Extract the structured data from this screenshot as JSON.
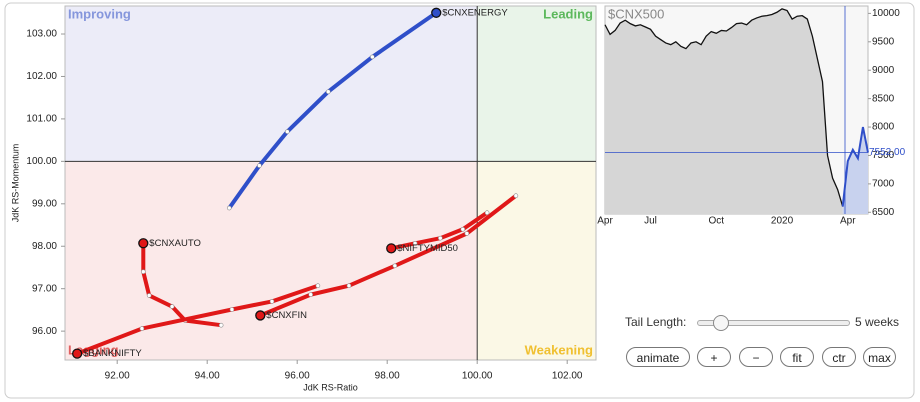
{
  "chart_data": [
    {
      "type": "rrg",
      "x_label": "JdK RS-Ratio",
      "y_label": "JdK RS-Momentum",
      "xlim": [
        90.84,
        102.64
      ],
      "ylim": [
        95.32,
        103.66
      ],
      "xticks": [
        {
          "value": 92,
          "label": "92.00"
        },
        {
          "value": 94,
          "label": "94.00"
        },
        {
          "value": 96,
          "label": "96.00"
        },
        {
          "value": 98,
          "label": "98.00"
        },
        {
          "value": 100,
          "label": "100.00"
        },
        {
          "value": 102,
          "label": "102.00"
        }
      ],
      "yticks": [
        {
          "value": 96,
          "label": "96.00"
        },
        {
          "value": 97,
          "label": "97.00"
        },
        {
          "value": 98,
          "label": "98.00"
        },
        {
          "value": 99,
          "label": "99.00"
        },
        {
          "value": 100,
          "label": "100.00"
        },
        {
          "value": 101,
          "label": "101.00"
        },
        {
          "value": 102,
          "label": "102.00"
        },
        {
          "value": 103,
          "label": "103.00"
        }
      ],
      "quadrant_center": [
        100,
        100
      ],
      "quadrants": {
        "improving": "Improving",
        "leading": "Leading",
        "weakening": "Weakening",
        "lagging": "Lagging"
      },
      "series": [
        {
          "name": "$CNXENERGY",
          "color": "#2f4fc9",
          "x": [
            94.49,
            95.16,
            95.78,
            96.69,
            97.67,
            99.09
          ],
          "y": [
            98.9,
            99.9,
            100.7,
            101.64,
            102.46,
            103.5
          ]
        },
        {
          "name": "$CNXAUTO",
          "color": "#e01818",
          "x": [
            94.31,
            93.51,
            93.22,
            92.71,
            92.58,
            92.58
          ],
          "y": [
            96.14,
            96.25,
            96.58,
            96.84,
            97.4,
            98.07
          ]
        },
        {
          "name": "$BANKNIFTY",
          "color": "#e01818",
          "x": [
            96.46,
            95.44,
            94.55,
            92.55,
            91.11
          ],
          "y": [
            97.07,
            96.7,
            96.51,
            96.06,
            95.47
          ]
        },
        {
          "name": "$CNXFIN",
          "color": "#e01818",
          "x": [
            100.86,
            99.77,
            98.17,
            97.15,
            96.3,
            95.18
          ],
          "y": [
            99.19,
            98.3,
            97.54,
            97.07,
            96.86,
            96.37
          ]
        },
        {
          "name": "$NIFTYMID50",
          "color": "#e01818",
          "x": [
            100.22,
            99.68,
            99.18,
            98.62,
            98.09
          ],
          "y": [
            98.79,
            98.4,
            98.19,
            98.07,
            97.95
          ]
        }
      ]
    },
    {
      "type": "line",
      "title": "$CNX500",
      "categories": [
        "Apr",
        null,
        null,
        null,
        null,
        null,
        null,
        null,
        null,
        "Jul",
        null,
        null,
        null,
        null,
        null,
        null,
        null,
        null,
        null,
        null,
        null,
        null,
        "Oct",
        null,
        null,
        null,
        null,
        null,
        null,
        null,
        null,
        null,
        null,
        null,
        null,
        "2020",
        null,
        null,
        null,
        null,
        null,
        null,
        null,
        null,
        null,
        null,
        null,
        null,
        "Apr",
        null,
        null,
        null,
        null
      ],
      "ylim": [
        6470,
        10130
      ],
      "yticks": [
        6500,
        7000,
        7500,
        8000,
        8500,
        9000,
        9500,
        10000
      ],
      "price_line": {
        "value": 7552,
        "label": "7552.00"
      },
      "series": [
        {
          "color": "#111111",
          "values": [
            9800,
            9630,
            9700,
            9830,
            9880,
            9820,
            9780,
            9800,
            9760,
            9720,
            9600,
            9540,
            9480,
            9450,
            9500,
            9420,
            9380,
            9480,
            9500,
            9450,
            9600,
            9680,
            9650,
            9700,
            9690,
            9750,
            9820,
            9830,
            9800,
            9880,
            9920,
            9950,
            9960,
            9980,
            10020,
            10080,
            10050,
            9900,
            9950,
            9960,
            9900,
            9600,
            9200,
            8800,
            7500,
            7100,
            6900,
            6600,
            null,
            null,
            null,
            null,
            null
          ]
        },
        {
          "color": "#2f4fc9",
          "values": [
            null,
            null,
            null,
            null,
            null,
            null,
            null,
            null,
            null,
            null,
            null,
            null,
            null,
            null,
            null,
            null,
            null,
            null,
            null,
            null,
            null,
            null,
            null,
            null,
            null,
            null,
            null,
            null,
            null,
            null,
            null,
            null,
            null,
            null,
            null,
            null,
            null,
            null,
            null,
            null,
            null,
            null,
            null,
            null,
            null,
            null,
            null,
            6600,
            7400,
            7600,
            7450,
            8000,
            7552
          ]
        }
      ]
    }
  ],
  "controls": {
    "tail_label": "Tail Length:",
    "tail_value": "5 weeks",
    "buttons": [
      "animate",
      "+",
      "−",
      "fit",
      "ctr",
      "max"
    ]
  }
}
